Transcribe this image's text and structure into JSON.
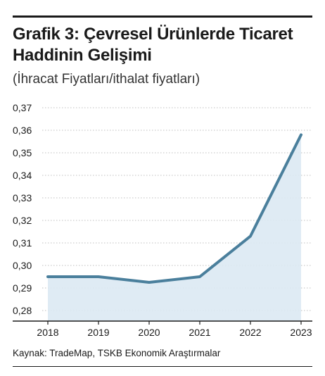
{
  "chart_data": {
    "type": "area",
    "title": "Grafik 3: Çevresel Ürünlerde Ticaret Haddinin Gelişimi",
    "subtitle": "(İhracat Fiyatları/ithalat fiyatları)",
    "x": [
      "2018",
      "2019",
      "2020",
      "2021",
      "2022",
      "2023"
    ],
    "values": [
      0.295,
      0.295,
      0.2925,
      0.295,
      0.313,
      0.358
    ],
    "ylim": [
      0.28,
      0.37
    ],
    "yticks": [
      "0,28",
      "0,29",
      "0,30",
      "0,31",
      "0,32",
      "0,33",
      "0,34",
      "0,35",
      "0,36",
      "0,37"
    ],
    "grid": true,
    "line_color": "#4a7f9c",
    "fill_color": "#dce9f3",
    "grid_color": "#bfbfbf"
  },
  "source": "Kaynak: TradeMap, TSKB Ekonomik Araştırmalar"
}
